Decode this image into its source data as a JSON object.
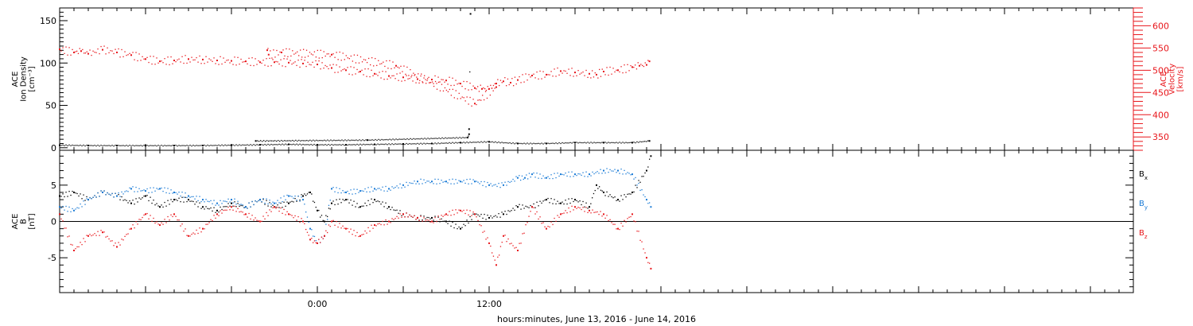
{
  "x_axis_title": "hours:minutes, June 13, 2016 - June 14, 2016",
  "colors": {
    "axis": "#000000",
    "velocity": "#e8161b",
    "density": "#000000",
    "bx": "#000000",
    "by": "#1a7bd6",
    "bz": "#e8161b"
  },
  "chart_data": [
    {
      "type": "scatter",
      "ylabel": [
        "ACE",
        "Ion Density",
        "[cm⁻³]"
      ],
      "y2label": [
        "ACE",
        "Velocity",
        "[km/s]"
      ],
      "x_unit": "hours from 2016-06-13 00:00",
      "xlim": [
        -18,
        57
      ],
      "xticks": [
        {
          "x": 0,
          "label": "0:00"
        },
        {
          "x": 12,
          "label": "12:00"
        }
      ],
      "ylim": [
        -3,
        165
      ],
      "yticks": [
        0,
        50,
        100,
        150
      ],
      "y2lim": [
        320,
        640
      ],
      "y2ticks": [
        350,
        400,
        450,
        500,
        550,
        600
      ],
      "series": [
        {
          "name": "Ion Density",
          "axis": "left",
          "color": "#000000",
          "points": [
            [
              -18.0,
              3
            ],
            [
              -16.0,
              2.6
            ],
            [
              -14.0,
              2.5
            ],
            [
              -12.0,
              2.5
            ],
            [
              -10.0,
              2.5
            ],
            [
              -8.0,
              2.6
            ],
            [
              -6.0,
              3
            ],
            [
              -4.0,
              3.5
            ],
            [
              -2.0,
              4
            ],
            [
              0.0,
              3.5
            ],
            [
              2.0,
              3.5
            ],
            [
              4.0,
              4
            ],
            [
              6.0,
              4.5
            ],
            [
              8.0,
              5
            ],
            [
              10.0,
              6
            ],
            [
              12.0,
              7
            ],
            [
              14.0,
              5
            ],
            [
              16.0,
              5
            ],
            [
              18.0,
              6
            ],
            [
              20.0,
              6
            ],
            [
              22.0,
              6
            ],
            [
              23.2,
              8
            ],
            [
              -4.3,
              8
            ],
            [
              3.5,
              9
            ],
            [
              10.5,
              12
            ],
            [
              10.6,
              16
            ],
            [
              10.6,
              22
            ],
            [
              10.7,
              158
            ]
          ]
        },
        {
          "name": "Velocity",
          "axis": "right",
          "color": "#e8161b",
          "points": [
            [
              -18.0,
              547
            ],
            [
              -17.0,
              540
            ],
            [
              -16.5,
              543
            ],
            [
              -16.0,
              537
            ],
            [
              -15.0,
              546
            ],
            [
              -14.0,
              540
            ],
            [
              -13.0,
              534
            ],
            [
              -12.0,
              525
            ],
            [
              -11.0,
              520
            ],
            [
              -10.0,
              522
            ],
            [
              -9.0,
              525
            ],
            [
              -8.0,
              524
            ],
            [
              -7.0,
              522
            ],
            [
              -6.0,
              521
            ],
            [
              -5.0,
              520
            ],
            [
              -4.0,
              518
            ],
            [
              -3.0,
              518
            ],
            [
              -2.0,
              517
            ],
            [
              -1.0,
              515
            ],
            [
              0.0,
              513
            ],
            [
              1.0,
              505
            ],
            [
              2.0,
              500
            ],
            [
              3.0,
              497
            ],
            [
              4.0,
              492
            ],
            [
              5.0,
              487
            ],
            [
              6.0,
              484
            ],
            [
              7.0,
              480
            ],
            [
              8.0,
              479
            ],
            [
              9.0,
              477
            ],
            [
              10.0,
              470
            ],
            [
              11.0,
              460
            ],
            [
              11.5,
              458
            ],
            [
              12.0,
              458
            ],
            [
              12.5,
              470
            ],
            [
              13.0,
              475
            ],
            [
              13.5,
              472
            ],
            [
              14.0,
              478
            ],
            [
              15.0,
              488
            ],
            [
              16.0,
              490
            ],
            [
              17.0,
              498
            ],
            [
              18.0,
              495
            ],
            [
              19.0,
              492
            ],
            [
              19.5,
              490
            ],
            [
              20.0,
              497
            ],
            [
              21.0,
              500
            ],
            [
              22.0,
              507
            ],
            [
              22.5,
              510
            ],
            [
              23.0,
              512
            ],
            [
              23.2,
              520
            ],
            [
              -3.5,
              545
            ],
            [
              -3.4,
              535
            ],
            [
              -2.5,
              540
            ],
            [
              1.0,
              535
            ],
            [
              5.5,
              510
            ],
            [
              11.0,
              425
            ],
            [
              12.5,
              462
            ]
          ]
        }
      ]
    },
    {
      "type": "scatter",
      "ylabel": [
        "ACE",
        "B",
        "[nT]"
      ],
      "x_unit": "hours from 2016-06-13 00:00",
      "xlim": [
        -18,
        57
      ],
      "xticks": [
        {
          "x": 0,
          "label": "0:00"
        },
        {
          "x": 12,
          "label": "12:00"
        }
      ],
      "ylim": [
        -9.8,
        9.8
      ],
      "yticks": [
        -5,
        0,
        5
      ],
      "zero_line": true,
      "legend": [
        {
          "base": "B",
          "sub": "x",
          "color": "#000000"
        },
        {
          "base": "B",
          "sub": "y",
          "color": "#1a7bd6"
        },
        {
          "base": "B",
          "sub": "z",
          "color": "#e8161b"
        }
      ],
      "series": [
        {
          "name": "Bx",
          "color": "#000000",
          "points": [
            [
              -18.0,
              3.5
            ],
            [
              -17.0,
              4
            ],
            [
              -16.0,
              3
            ],
            [
              -15.0,
              4
            ],
            [
              -14.0,
              3.5
            ],
            [
              -13.0,
              2.5
            ],
            [
              -12.0,
              3.5
            ],
            [
              -11.0,
              2
            ],
            [
              -10.0,
              3
            ],
            [
              -9.0,
              3
            ],
            [
              -8.0,
              2
            ],
            [
              -7.0,
              1.5
            ],
            [
              -6.0,
              2.5
            ],
            [
              -5.0,
              2
            ],
            [
              -4.0,
              3
            ],
            [
              -3.0,
              2
            ],
            [
              -2.0,
              2.5
            ],
            [
              -1.0,
              3.5
            ],
            [
              -0.5,
              4
            ],
            [
              0.0,
              1.5
            ],
            [
              0.5,
              0
            ],
            [
              1.0,
              2.5
            ],
            [
              2.0,
              3
            ],
            [
              3.0,
              2
            ],
            [
              4.0,
              3
            ],
            [
              5.0,
              2
            ],
            [
              6.0,
              1
            ],
            [
              7.0,
              0.5
            ],
            [
              8.0,
              0.5
            ],
            [
              9.0,
              0
            ],
            [
              10.0,
              -1
            ],
            [
              11.0,
              1
            ],
            [
              12.0,
              0.5
            ],
            [
              13.0,
              1
            ],
            [
              14.0,
              2
            ],
            [
              15.0,
              2
            ],
            [
              16.0,
              3
            ],
            [
              17.0,
              2.5
            ],
            [
              18.0,
              3
            ],
            [
              19.0,
              2
            ],
            [
              19.5,
              5
            ],
            [
              20.0,
              4
            ],
            [
              21.0,
              3
            ],
            [
              22.0,
              4
            ],
            [
              23.0,
              7
            ],
            [
              23.3,
              9
            ]
          ]
        },
        {
          "name": "By",
          "color": "#1a7bd6",
          "points": [
            [
              -18.0,
              2
            ],
            [
              -17.0,
              1.5
            ],
            [
              -16.0,
              3
            ],
            [
              -15.0,
              4
            ],
            [
              -14.0,
              3.5
            ],
            [
              -13.0,
              4.5
            ],
            [
              -12.0,
              4.2
            ],
            [
              -11.0,
              4.5
            ],
            [
              -10.0,
              4
            ],
            [
              -9.0,
              3.5
            ],
            [
              -8.0,
              3
            ],
            [
              -7.0,
              2.5
            ],
            [
              -6.0,
              3
            ],
            [
              -5.0,
              2
            ],
            [
              -4.0,
              3
            ],
            [
              -3.0,
              2.5
            ],
            [
              -2.0,
              3.5
            ],
            [
              -1.0,
              3
            ],
            [
              -0.5,
              -1
            ],
            [
              0.0,
              -3
            ],
            [
              0.5,
              -2
            ],
            [
              1.0,
              4.5
            ],
            [
              2.0,
              4
            ],
            [
              3.0,
              4.2
            ],
            [
              4.0,
              4.5
            ],
            [
              5.0,
              4.5
            ],
            [
              6.0,
              5
            ],
            [
              7.0,
              5.5
            ],
            [
              8.0,
              5.5
            ],
            [
              9.0,
              5.5
            ],
            [
              10.0,
              5.5
            ],
            [
              11.0,
              5.5
            ],
            [
              12.0,
              5
            ],
            [
              13.0,
              5
            ],
            [
              14.0,
              6
            ],
            [
              14.5,
              6
            ],
            [
              15.0,
              6.5
            ],
            [
              16.0,
              6
            ],
            [
              17.0,
              6.5
            ],
            [
              18.0,
              6.5
            ],
            [
              19.0,
              6.5
            ],
            [
              20.0,
              7
            ],
            [
              21.0,
              7
            ],
            [
              22.0,
              6.5
            ],
            [
              23.0,
              3
            ],
            [
              23.3,
              2
            ]
          ]
        },
        {
          "name": "Bz",
          "color": "#e8161b",
          "points": [
            [
              -18.0,
              1
            ],
            [
              -17.0,
              -4
            ],
            [
              -16.0,
              -2
            ],
            [
              -15.0,
              -1.5
            ],
            [
              -14.0,
              -3.5
            ],
            [
              -13.0,
              -1
            ],
            [
              -12.0,
              1
            ],
            [
              -11.0,
              -0.5
            ],
            [
              -10.0,
              1
            ],
            [
              -9.0,
              -2
            ],
            [
              -8.0,
              -1
            ],
            [
              -7.0,
              1
            ],
            [
              -6.0,
              2
            ],
            [
              -5.0,
              1
            ],
            [
              -4.0,
              0
            ],
            [
              -3.0,
              2
            ],
            [
              -2.0,
              1
            ],
            [
              -1.0,
              0
            ],
            [
              -0.5,
              -2.5
            ],
            [
              0.0,
              -3
            ],
            [
              0.5,
              -2
            ],
            [
              1.0,
              0
            ],
            [
              2.0,
              -1
            ],
            [
              3.0,
              -2
            ],
            [
              4.0,
              -0.5
            ],
            [
              5.0,
              0
            ],
            [
              6.0,
              1
            ],
            [
              7.0,
              0.5
            ],
            [
              8.0,
              0
            ],
            [
              9.0,
              1
            ],
            [
              10.0,
              1.5
            ],
            [
              11.0,
              1
            ],
            [
              12.0,
              -3
            ],
            [
              12.5,
              -6
            ],
            [
              13.0,
              -2
            ],
            [
              14.0,
              -4
            ],
            [
              15.0,
              2
            ],
            [
              16.0,
              -1
            ],
            [
              17.0,
              1
            ],
            [
              18.0,
              2
            ],
            [
              19.0,
              1.5
            ],
            [
              20.0,
              1
            ],
            [
              21.0,
              -1
            ],
            [
              22.0,
              1
            ],
            [
              23.0,
              -5
            ],
            [
              23.3,
              -6.5
            ]
          ]
        }
      ]
    }
  ]
}
